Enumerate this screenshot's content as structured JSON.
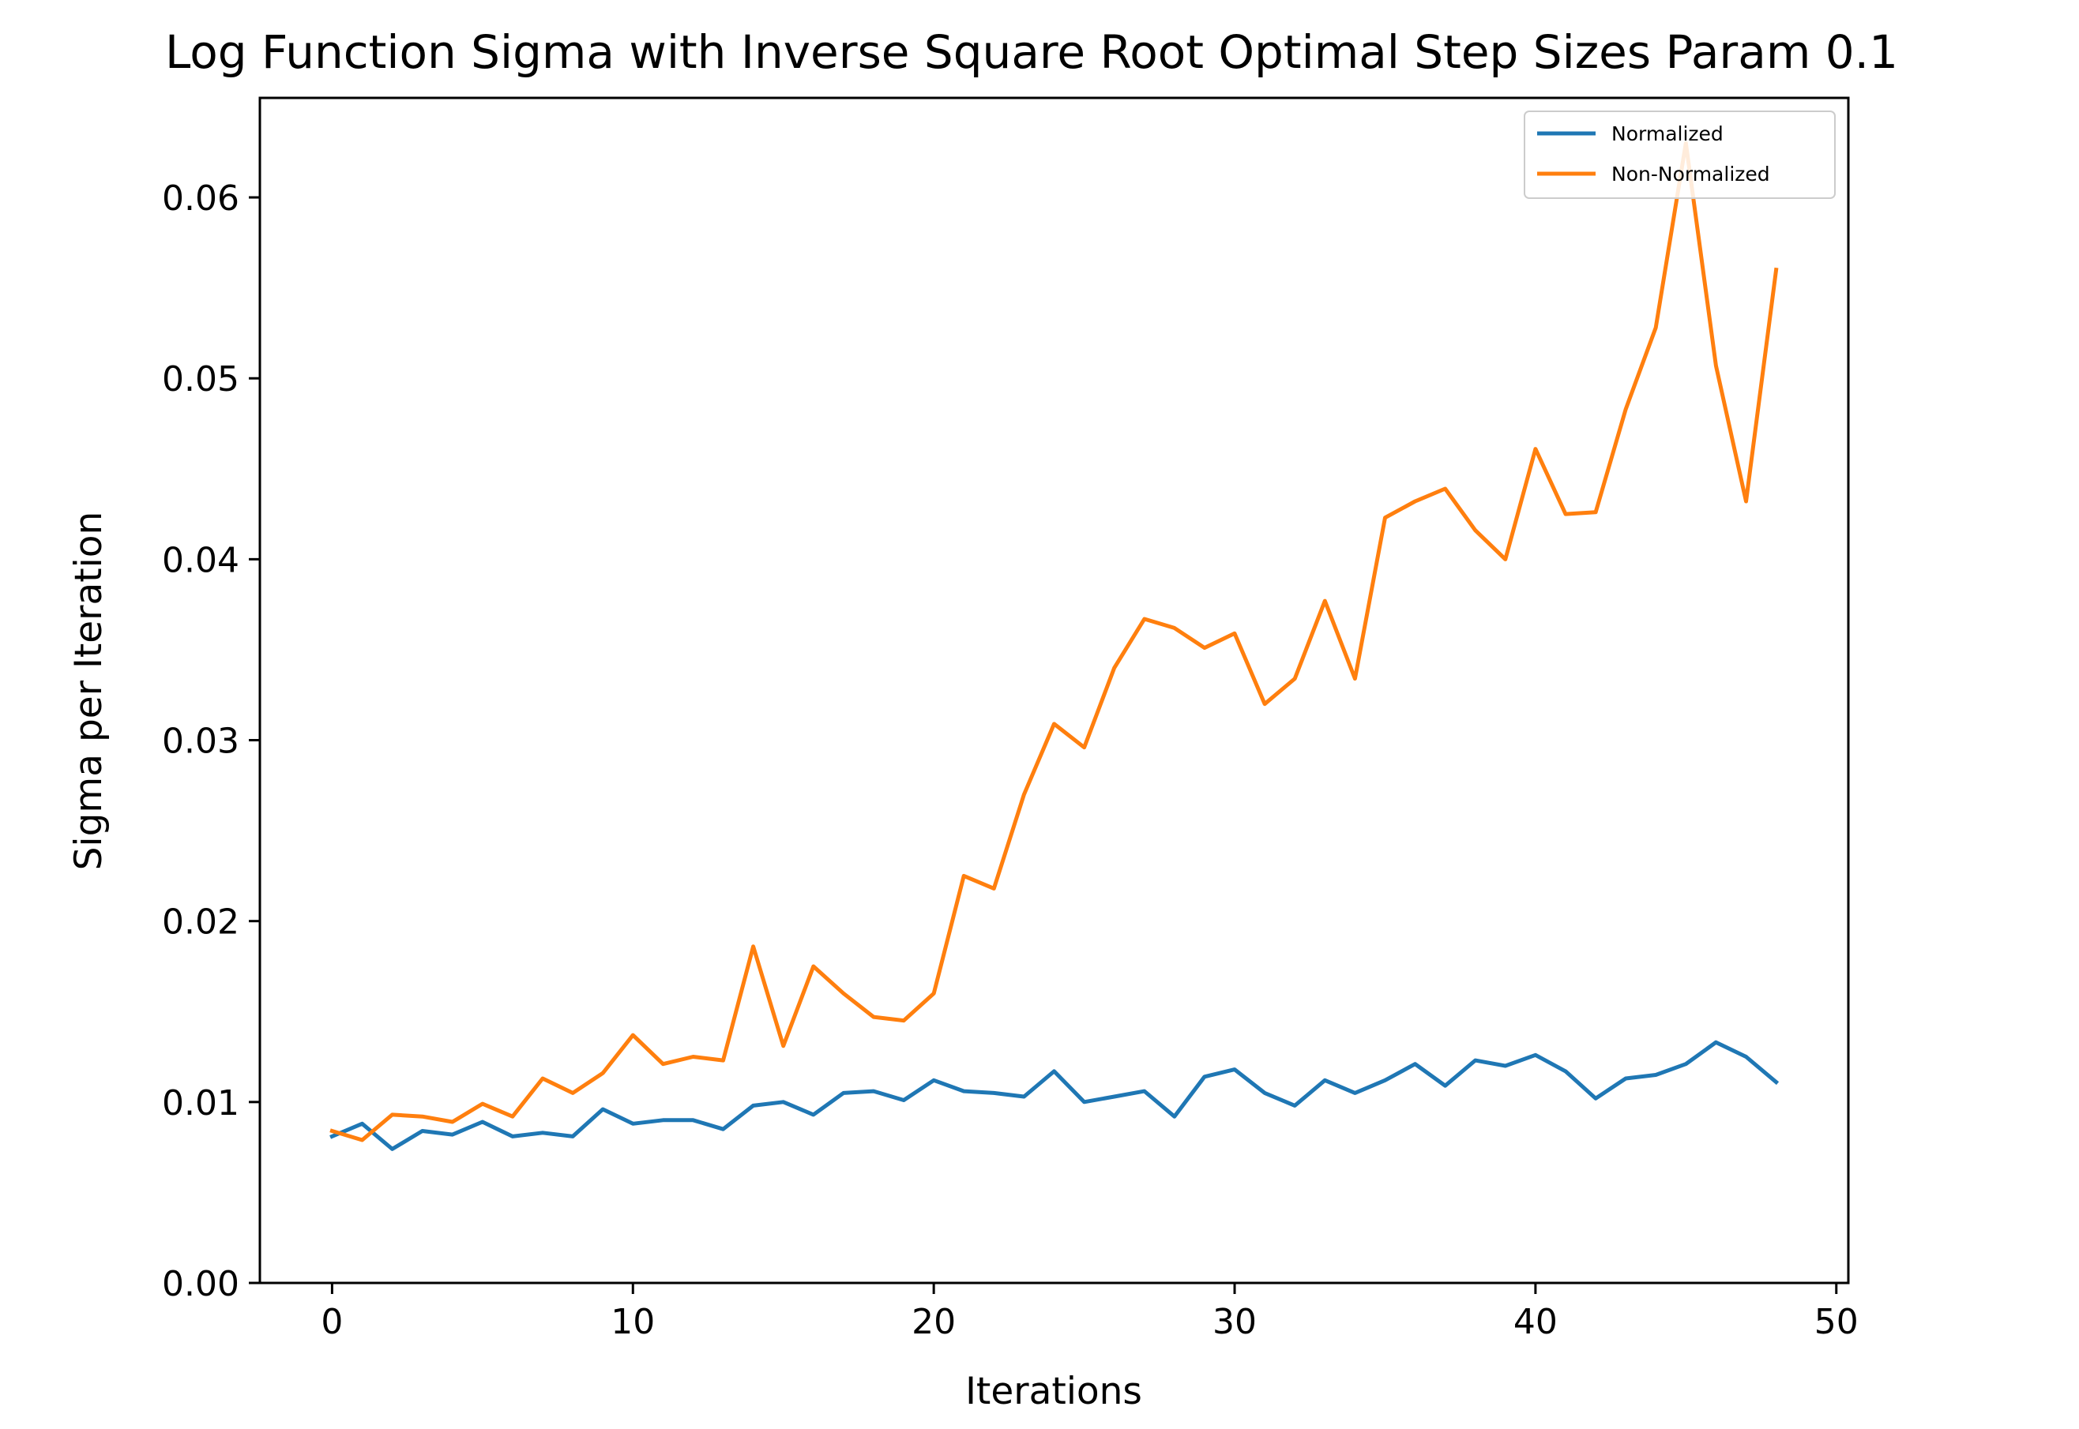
{
  "chart_data": {
    "type": "line",
    "title": "Log Function Sigma with Inverse Square Root Optimal Step Sizes Param 0.1",
    "xlabel": "Iterations",
    "ylabel": "Sigma per Iteration",
    "xlim": [
      -2.4,
      50.4
    ],
    "ylim": [
      0,
      0.0655
    ],
    "xticks": [
      0,
      10,
      20,
      30,
      40,
      50
    ],
    "xtick_labels": [
      "0",
      "10",
      "20",
      "30",
      "40",
      "50"
    ],
    "yticks": [
      0,
      0.01,
      0.02,
      0.03,
      0.04,
      0.05,
      0.06
    ],
    "ytick_labels": [
      "0.00",
      "0.01",
      "0.02",
      "0.03",
      "0.04",
      "0.05",
      "0.06"
    ],
    "grid": false,
    "legend_position": "top-right",
    "x": [
      0,
      1,
      2,
      3,
      4,
      5,
      6,
      7,
      8,
      9,
      10,
      11,
      12,
      13,
      14,
      15,
      16,
      17,
      18,
      19,
      20,
      21,
      22,
      23,
      24,
      25,
      26,
      27,
      28,
      29,
      30,
      31,
      32,
      33,
      34,
      35,
      36,
      37,
      38,
      39,
      40,
      41,
      42,
      43,
      44,
      45,
      46,
      47,
      48
    ],
    "series": [
      {
        "name": "Normalized",
        "color": "#1f77b4",
        "values": [
          0.0081,
          0.0088,
          0.0074,
          0.0084,
          0.0082,
          0.0089,
          0.0081,
          0.0083,
          0.0081,
          0.0096,
          0.0088,
          0.009,
          0.009,
          0.0085,
          0.0098,
          0.01,
          0.0093,
          0.0105,
          0.0106,
          0.0101,
          0.0112,
          0.0106,
          0.0105,
          0.0103,
          0.0117,
          0.01,
          0.0103,
          0.0106,
          0.0092,
          0.0114,
          0.0118,
          0.0105,
          0.0098,
          0.0112,
          0.0105,
          0.0112,
          0.0121,
          0.0109,
          0.0123,
          0.012,
          0.0126,
          0.0117,
          0.0102,
          0.0113,
          0.0115,
          0.0121,
          0.0133,
          0.0125,
          0.0111
        ]
      },
      {
        "name": "Non-Normalized",
        "color": "#ff7f0e",
        "values": [
          0.0084,
          0.0079,
          0.0093,
          0.0092,
          0.0089,
          0.0099,
          0.0092,
          0.0113,
          0.0105,
          0.0116,
          0.0137,
          0.0121,
          0.0125,
          0.0123,
          0.0186,
          0.0131,
          0.0175,
          0.016,
          0.0147,
          0.0145,
          0.016,
          0.0225,
          0.0218,
          0.027,
          0.0309,
          0.0296,
          0.034,
          0.0367,
          0.0362,
          0.0351,
          0.0359,
          0.032,
          0.0334,
          0.0377,
          0.0334,
          0.0423,
          0.0432,
          0.0439,
          0.0416,
          0.04,
          0.0461,
          0.0425,
          0.0426,
          0.0483,
          0.0528,
          0.063,
          0.0507,
          0.0432,
          0.056
        ]
      }
    ]
  }
}
